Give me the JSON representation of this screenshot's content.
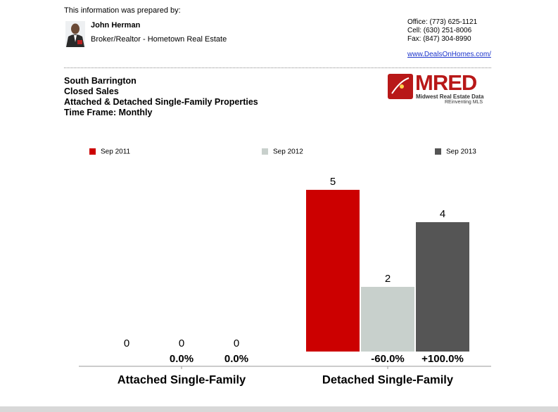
{
  "header": {
    "prepared_by": "This information was prepared by:",
    "agent_name": "John Herman",
    "agent_title": "Broker/Realtor - Hometown Real Estate",
    "contact": [
      "Office: (773) 625-1121",
      "Cell: (630) 251-8006",
      "Fax: (847) 304-8990"
    ],
    "website": "www.DealsOnHomes.com/"
  },
  "report": {
    "lines": [
      "South Barrington",
      "Closed Sales",
      "Attached & Detached Single-Family Properties",
      "Time Frame: Monthly"
    ]
  },
  "logo": {
    "name": "MRED",
    "subtitle": "Midwest Real Estate Data",
    "tagline": "REinventing MLS"
  },
  "chart_data": {
    "type": "bar",
    "categories": [
      "Attached Single-Family",
      "Detached Single-Family"
    ],
    "series": [
      {
        "name": "Sep 2011",
        "color": "#cc0000",
        "values": [
          0,
          5
        ]
      },
      {
        "name": "Sep 2012",
        "color": "#c8d0cc",
        "values": [
          0,
          2
        ],
        "change_labels": [
          "0.0%",
          "-60.0%"
        ]
      },
      {
        "name": "Sep 2013",
        "color": "#555555",
        "values": [
          0,
          4
        ],
        "change_labels": [
          "0.0%",
          "+100.0%"
        ]
      }
    ]
  }
}
